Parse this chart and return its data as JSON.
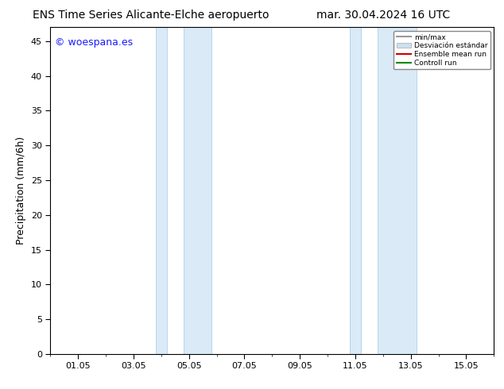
{
  "title_left": "ENS Time Series Alicante-Elche aeropuerto",
  "title_right": "mar. 30.04.2024 16 UTC",
  "ylabel": "Precipitation (mm/6h)",
  "watermark": "© woespana.es",
  "ylim": [
    0,
    47
  ],
  "yticks": [
    0,
    5,
    10,
    15,
    20,
    25,
    30,
    35,
    40,
    45
  ],
  "xtick_labels": [
    "01.05",
    "03.05",
    "05.05",
    "07.05",
    "09.05",
    "11.05",
    "13.05",
    "15.05"
  ],
  "xtick_positions": [
    1,
    3,
    5,
    7,
    9,
    11,
    13,
    15
  ],
  "xlim": [
    0,
    16
  ],
  "shaded_regions": [
    {
      "start": 3.8,
      "end": 4.2,
      "color": "#daeaf7"
    },
    {
      "start": 4.8,
      "end": 5.8,
      "color": "#daeaf7"
    },
    {
      "start": 10.8,
      "end": 11.2,
      "color": "#daeaf7"
    },
    {
      "start": 11.8,
      "end": 13.2,
      "color": "#daeaf7"
    }
  ],
  "shaded_borders": [
    {
      "x": 3.8,
      "color": "#b8d4ec"
    },
    {
      "x": 4.2,
      "color": "#b8d4ec"
    },
    {
      "x": 4.8,
      "color": "#b8d4ec"
    },
    {
      "x": 5.8,
      "color": "#b8d4ec"
    },
    {
      "x": 10.8,
      "color": "#b8d4ec"
    },
    {
      "x": 11.2,
      "color": "#b8d4ec"
    },
    {
      "x": 11.8,
      "color": "#b8d4ec"
    },
    {
      "x": 13.2,
      "color": "#b8d4ec"
    }
  ],
  "legend_line1_label": "min/max",
  "legend_line1_color": "#999999",
  "legend_patch_color": "#cce0f0",
  "legend_mean_label": "Ensemble mean run",
  "legend_mean_color": "#cc0000",
  "legend_ctrl_label": "Controll run",
  "legend_ctrl_color": "#008800",
  "bg_color": "#ffffff",
  "title_fontsize": 10,
  "tick_fontsize": 8,
  "label_fontsize": 9,
  "watermark_color": "#1a1aff",
  "watermark_fontsize": 9
}
